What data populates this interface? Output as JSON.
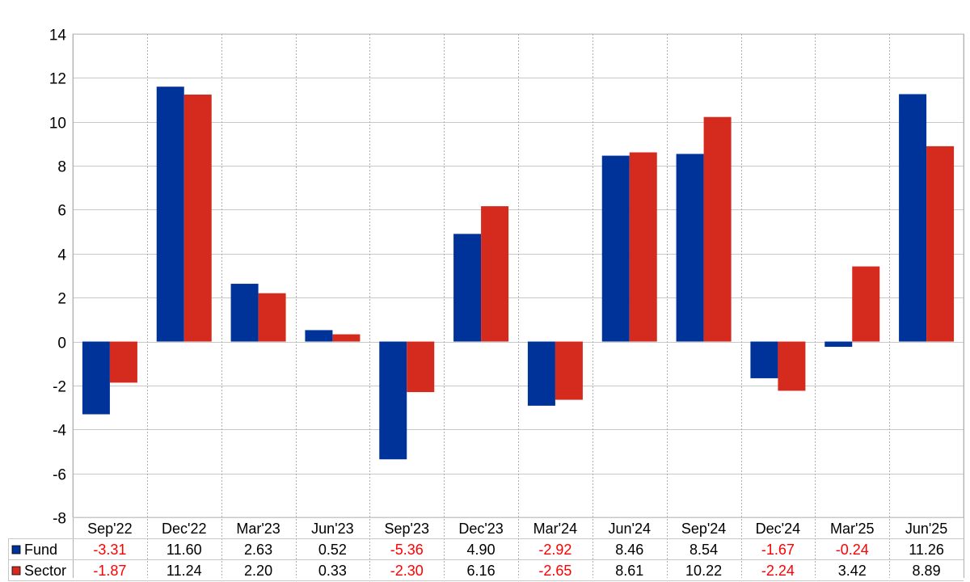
{
  "chart_data": {
    "type": "bar",
    "categories": [
      "Sep'22",
      "Dec'22",
      "Mar'23",
      "Jun'23",
      "Sep'23",
      "Dec'23",
      "Mar'24",
      "Jun'24",
      "Sep'24",
      "Dec'24",
      "Mar'25",
      "Jun'25"
    ],
    "series": [
      {
        "name": "Fund",
        "color": "#003399",
        "values": [
          -3.31,
          11.6,
          2.63,
          0.52,
          -5.36,
          4.9,
          -2.92,
          8.46,
          8.54,
          -1.67,
          -0.24,
          11.26
        ],
        "labels": [
          "-3.31",
          "11.60",
          "2.63",
          "0.52",
          "-5.36",
          "4.90",
          "-2.92",
          "8.46",
          "8.54",
          "-1.67",
          "-0.24",
          "11.26"
        ]
      },
      {
        "name": "Sector",
        "color": "#d52b1e",
        "values": [
          -1.87,
          11.24,
          2.2,
          0.33,
          -2.3,
          6.16,
          -2.65,
          8.61,
          10.22,
          -2.24,
          3.42,
          8.89
        ],
        "labels": [
          "-1.87",
          "11.24",
          "2.20",
          "0.33",
          "-2.30",
          "6.16",
          "-2.65",
          "8.61",
          "10.22",
          "-2.24",
          "3.42",
          "8.89"
        ]
      }
    ],
    "ylim": [
      -8,
      14
    ],
    "yticks": [
      "14",
      "12",
      "10",
      "8",
      "6",
      "4",
      "2",
      "0",
      "-2",
      "-4",
      "-6",
      "-8"
    ],
    "ytick_values": [
      14,
      12,
      10,
      8,
      6,
      4,
      2,
      0,
      -2,
      -4,
      -6,
      -8
    ],
    "grid": true,
    "legend": "data-table-below",
    "negative_color": "#ff0000",
    "positive_color": "#000000"
  }
}
